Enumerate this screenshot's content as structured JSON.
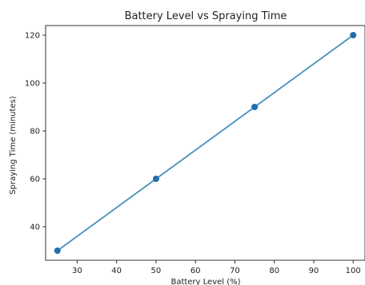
{
  "chart_data": {
    "type": "line",
    "title": "Battery Level vs Spraying Time",
    "xlabel": "Battery Level (%)",
    "ylabel": "Spraying Time (minutes)",
    "x": [
      25,
      50,
      75,
      100
    ],
    "series": [
      {
        "values": [
          30,
          60,
          90,
          120
        ]
      }
    ],
    "xlim": [
      22,
      103
    ],
    "ylim": [
      26,
      124
    ],
    "xticks": [
      30,
      40,
      50,
      60,
      70,
      80,
      90,
      100
    ],
    "yticks": [
      40,
      60,
      80,
      100,
      120
    ],
    "markers": true,
    "grid": false,
    "line_color": "#4b8fbd",
    "marker_color": "#1f6fae"
  }
}
